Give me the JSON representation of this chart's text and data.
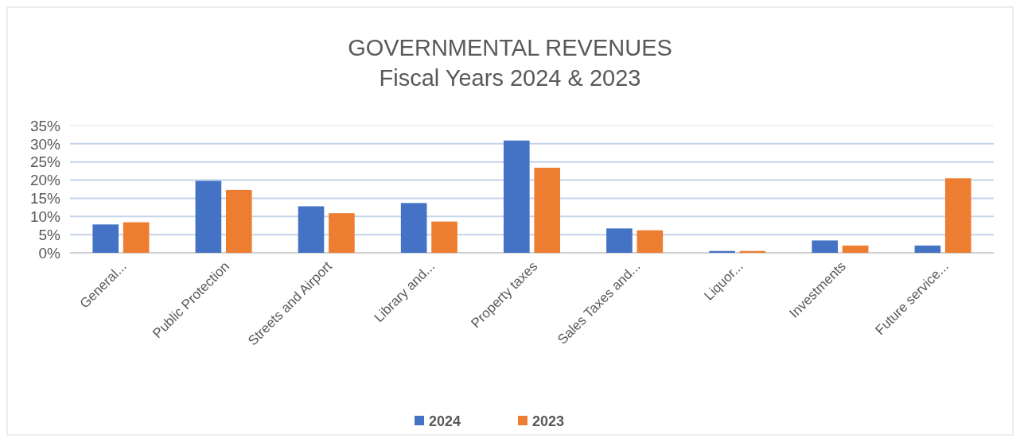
{
  "chart_data": {
    "type": "bar",
    "title": "GOVERNMENTAL REVENUES",
    "subtitle": "Fiscal Years 2024 & 2023",
    "categories": [
      "General...",
      "Public Protection",
      "Streets and Airport",
      "Library and...",
      "Property taxes",
      "Sales Taxes and...",
      "Liquor...",
      "Investments",
      "Future service..."
    ],
    "series": [
      {
        "name": "2024",
        "color": "#4472c4",
        "values": [
          7.8,
          19.8,
          12.8,
          13.7,
          30.9,
          6.7,
          0.5,
          3.4,
          2.0
        ]
      },
      {
        "name": "2023",
        "color": "#ed7d31",
        "values": [
          8.4,
          17.3,
          10.9,
          8.6,
          23.4,
          6.2,
          0.5,
          2.0,
          20.5
        ]
      }
    ],
    "ylim": [
      0,
      35
    ],
    "yticks": [
      {
        "value": 0,
        "label": "0%"
      },
      {
        "value": 5,
        "label": "5%"
      },
      {
        "value": 10,
        "label": "10%"
      },
      {
        "value": 15,
        "label": "15%"
      },
      {
        "value": 20,
        "label": "20%"
      },
      {
        "value": 25,
        "label": "25%"
      },
      {
        "value": 30,
        "label": "30%"
      },
      {
        "value": 35,
        "label": "35%"
      }
    ],
    "grid": true,
    "legend": "bottom"
  }
}
